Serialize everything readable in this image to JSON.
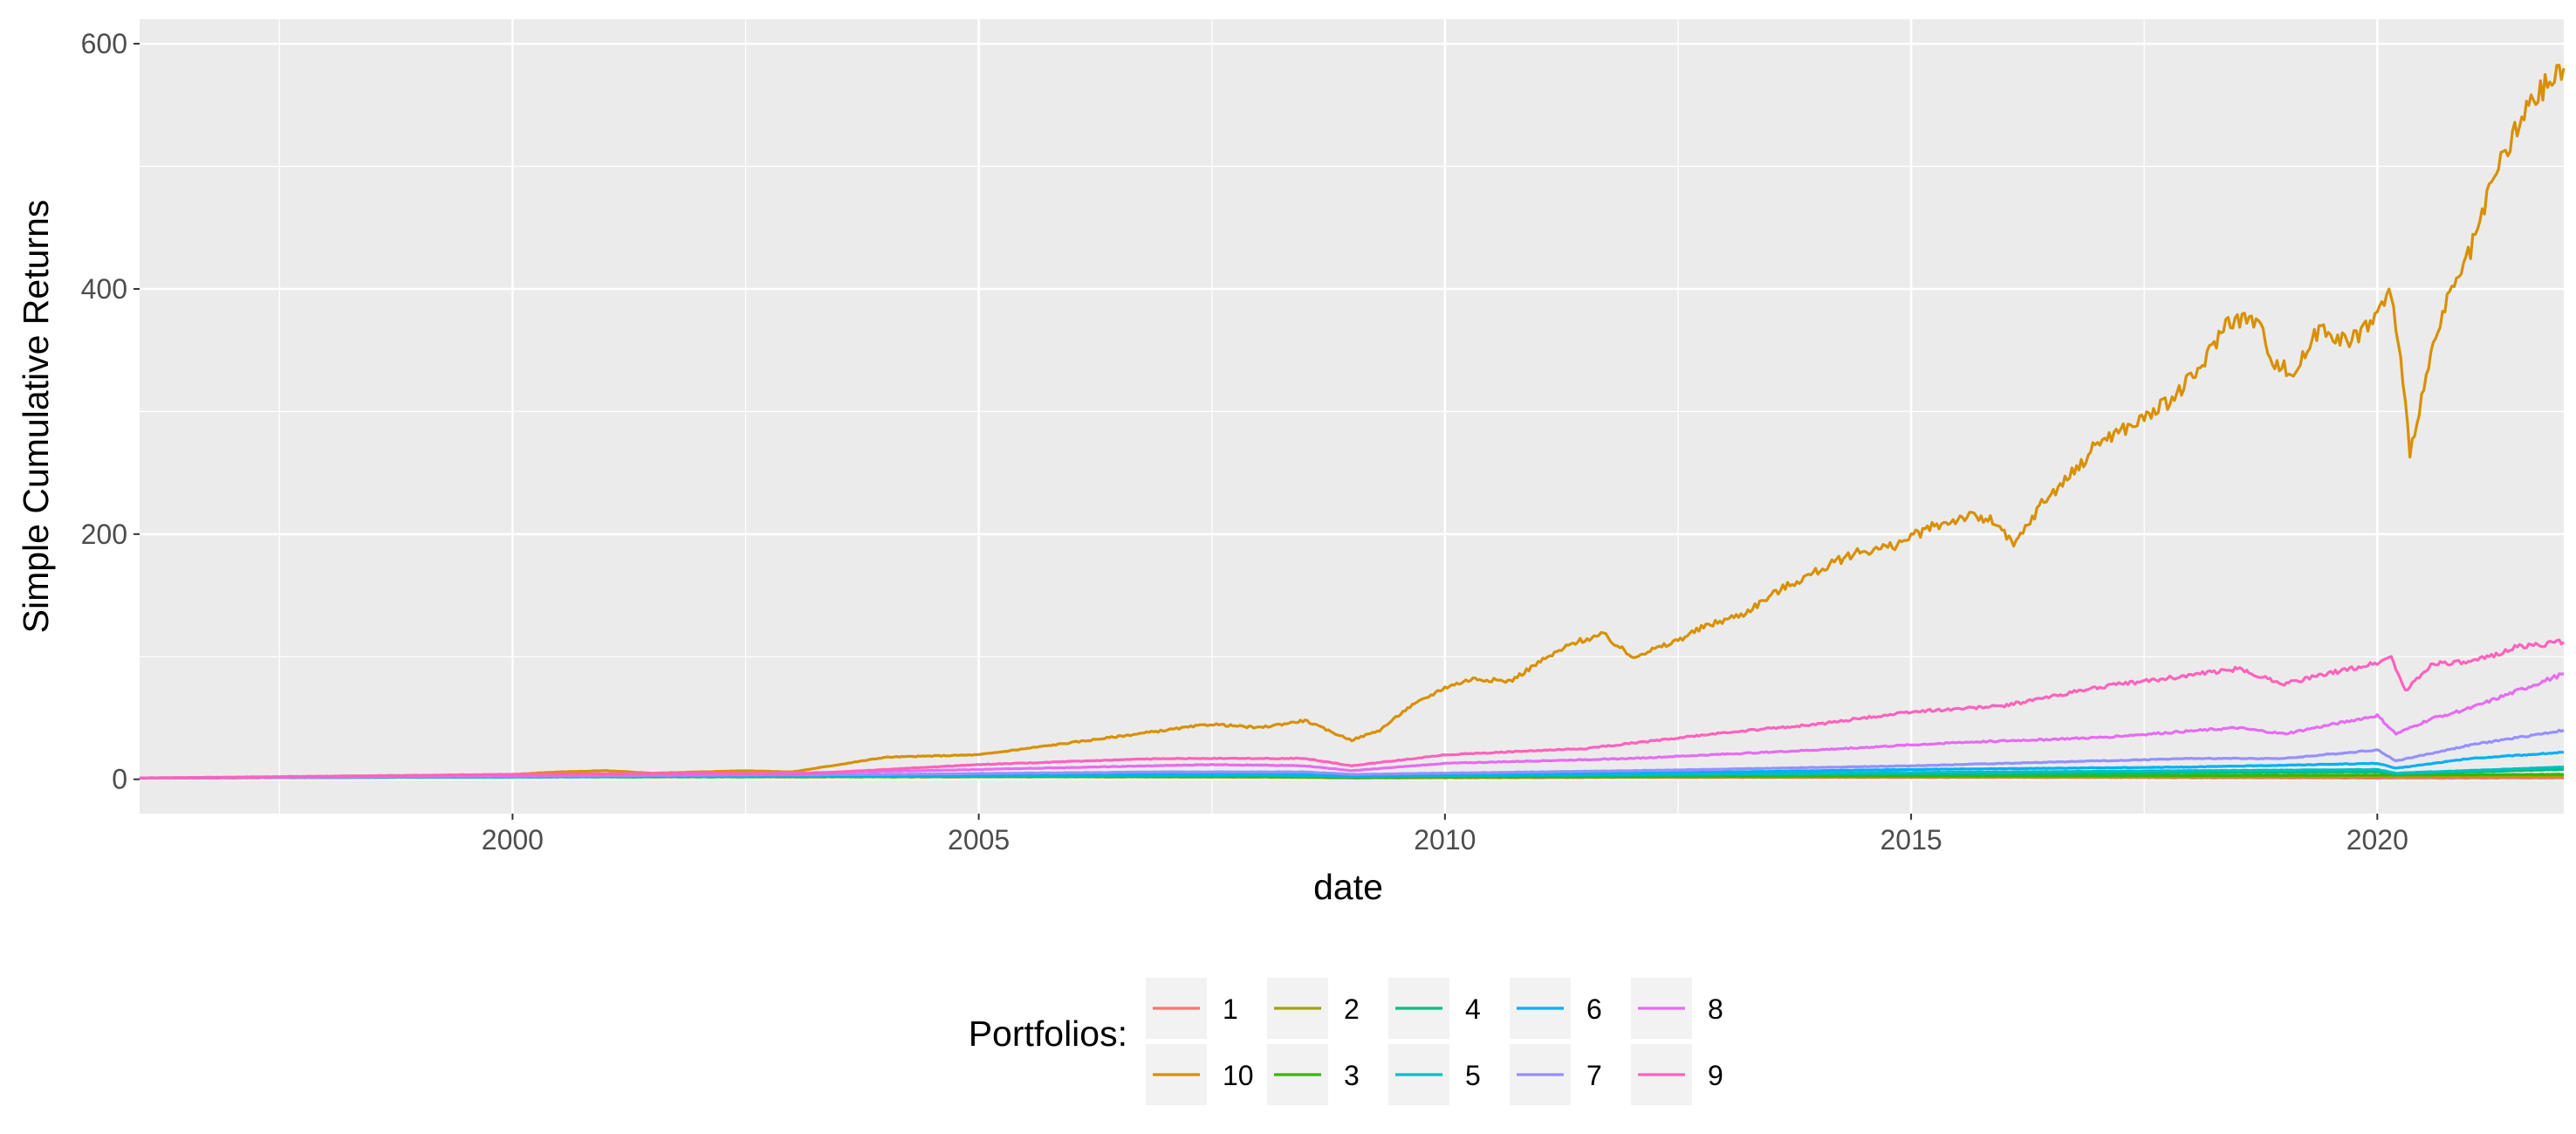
{
  "chart_data": {
    "type": "line",
    "title": "",
    "xlabel": "date",
    "ylabel": "Simple Cumulative Returns",
    "x_range": [
      1996.0,
      2022.0
    ],
    "y_range": [
      -28,
      620
    ],
    "x_ticks": [
      2000,
      2005,
      2010,
      2015,
      2020
    ],
    "x_tick_labels": [
      "2000",
      "2005",
      "2010",
      "2015",
      "2020"
    ],
    "y_ticks": [
      0,
      200,
      400,
      600
    ],
    "y_tick_labels": [
      "0",
      "200",
      "400",
      "600"
    ],
    "grid": true,
    "background": "#ebebeb",
    "legend": {
      "title": "Portfolios:",
      "position": "bottom",
      "entries": [
        {
          "label": "1",
          "color": "#F8766D"
        },
        {
          "label": "10",
          "color": "#D89000"
        },
        {
          "label": "2",
          "color": "#A3A500"
        },
        {
          "label": "3",
          "color": "#39B600"
        },
        {
          "label": "4",
          "color": "#00BF7D"
        },
        {
          "label": "5",
          "color": "#00BFC4"
        },
        {
          "label": "6",
          "color": "#00B0F6"
        },
        {
          "label": "7",
          "color": "#9590FF"
        },
        {
          "label": "8",
          "color": "#E76BF3"
        },
        {
          "label": "9",
          "color": "#FF62BC"
        }
      ]
    },
    "series": [
      {
        "name": "1",
        "color": "#F8766D",
        "points": [
          [
            1996.0,
            1
          ],
          [
            1998.0,
            1.5
          ],
          [
            2000.0,
            3
          ],
          [
            2001.0,
            3.5
          ],
          [
            2002.0,
            3
          ],
          [
            2003.0,
            2
          ],
          [
            2005.0,
            2
          ],
          [
            2008.0,
            2
          ],
          [
            2009.0,
            1
          ],
          [
            2012.0,
            1.5
          ],
          [
            2016.0,
            1.5
          ],
          [
            2020.0,
            1
          ],
          [
            2022.0,
            1
          ]
        ]
      },
      {
        "name": "10",
        "color": "#D89000",
        "points": [
          [
            1996.0,
            1
          ],
          [
            1997.0,
            1.5
          ],
          [
            1998.0,
            2
          ],
          [
            1999.0,
            3
          ],
          [
            2000.0,
            4
          ],
          [
            2000.5,
            6
          ],
          [
            2001.0,
            7
          ],
          [
            2001.5,
            5
          ],
          [
            2002.0,
            6
          ],
          [
            2002.5,
            7
          ],
          [
            2003.0,
            6
          ],
          [
            2003.5,
            12
          ],
          [
            2004.0,
            18
          ],
          [
            2005.0,
            20
          ],
          [
            2005.5,
            25
          ],
          [
            2006.0,
            30
          ],
          [
            2007.0,
            40
          ],
          [
            2007.5,
            45
          ],
          [
            2008.0,
            42
          ],
          [
            2008.5,
            48
          ],
          [
            2008.8,
            38
          ],
          [
            2009.0,
            32
          ],
          [
            2009.3,
            40
          ],
          [
            2009.6,
            58
          ],
          [
            2010.0,
            75
          ],
          [
            2010.3,
            82
          ],
          [
            2010.7,
            80
          ],
          [
            2011.0,
            95
          ],
          [
            2011.4,
            112
          ],
          [
            2011.7,
            118
          ],
          [
            2012.0,
            100
          ],
          [
            2012.4,
            110
          ],
          [
            2012.8,
            125
          ],
          [
            2013.2,
            135
          ],
          [
            2013.6,
            155
          ],
          [
            2014.0,
            170
          ],
          [
            2014.4,
            185
          ],
          [
            2014.8,
            190
          ],
          [
            2015.2,
            205
          ],
          [
            2015.6,
            215
          ],
          [
            2015.9,
            210
          ],
          [
            2016.1,
            190
          ],
          [
            2016.4,
            225
          ],
          [
            2016.8,
            255
          ],
          [
            2017.0,
            275
          ],
          [
            2017.4,
            290
          ],
          [
            2017.8,
            310
          ],
          [
            2018.1,
            335
          ],
          [
            2018.4,
            375
          ],
          [
            2018.7,
            375
          ],
          [
            2018.9,
            340
          ],
          [
            2019.1,
            330
          ],
          [
            2019.4,
            370
          ],
          [
            2019.7,
            355
          ],
          [
            2020.0,
            380
          ],
          [
            2020.15,
            398
          ],
          [
            2020.25,
            340
          ],
          [
            2020.35,
            268
          ],
          [
            2020.5,
            320
          ],
          [
            2020.7,
            380
          ],
          [
            2021.0,
            430
          ],
          [
            2021.3,
            500
          ],
          [
            2021.6,
            545
          ],
          [
            2021.8,
            565
          ],
          [
            2022.0,
            580
          ]
        ]
      },
      {
        "name": "2",
        "color": "#A3A500",
        "points": [
          [
            1996.0,
            1
          ],
          [
            1998.0,
            1.5
          ],
          [
            2000.0,
            2
          ],
          [
            2003.0,
            2
          ],
          [
            2006.0,
            2
          ],
          [
            2009.0,
            1.5
          ],
          [
            2014.0,
            2
          ],
          [
            2018.0,
            2
          ],
          [
            2022.0,
            2.5
          ]
        ]
      },
      {
        "name": "3",
        "color": "#39B600",
        "points": [
          [
            1996.0,
            1
          ],
          [
            2000.0,
            1.8
          ],
          [
            2004.0,
            2
          ],
          [
            2008.0,
            2.2
          ],
          [
            2009.0,
            1.6
          ],
          [
            2013.0,
            2.5
          ],
          [
            2018.0,
            3
          ],
          [
            2022.0,
            4
          ]
        ]
      },
      {
        "name": "4",
        "color": "#00BF7D",
        "points": [
          [
            1996.0,
            1
          ],
          [
            2000.0,
            2
          ],
          [
            2004.0,
            2.5
          ],
          [
            2008.0,
            3
          ],
          [
            2009.0,
            2
          ],
          [
            2013.0,
            3.5
          ],
          [
            2016.0,
            4.5
          ],
          [
            2020.0,
            6
          ],
          [
            2020.2,
            4.5
          ],
          [
            2022.0,
            8
          ]
        ]
      },
      {
        "name": "5",
        "color": "#00BFC4",
        "points": [
          [
            1996.0,
            1
          ],
          [
            2000.0,
            2
          ],
          [
            2004.0,
            2.5
          ],
          [
            2008.0,
            3.5
          ],
          [
            2009.0,
            2.5
          ],
          [
            2013.0,
            4.5
          ],
          [
            2016.0,
            6
          ],
          [
            2020.0,
            8
          ],
          [
            2020.2,
            5
          ],
          [
            2022.0,
            10
          ]
        ]
      },
      {
        "name": "6",
        "color": "#00B0F6",
        "points": [
          [
            1996.0,
            1
          ],
          [
            2000.0,
            2
          ],
          [
            2004.0,
            3
          ],
          [
            2008.0,
            5
          ],
          [
            2009.0,
            3
          ],
          [
            2012.0,
            5
          ],
          [
            2015.0,
            8
          ],
          [
            2018.0,
            10
          ],
          [
            2020.0,
            13
          ],
          [
            2020.2,
            9
          ],
          [
            2021.0,
            17
          ],
          [
            2022.0,
            22
          ]
        ]
      },
      {
        "name": "7",
        "color": "#9590FF",
        "points": [
          [
            1996.0,
            1
          ],
          [
            2000.0,
            2.5
          ],
          [
            2004.0,
            4
          ],
          [
            2007.0,
            6
          ],
          [
            2008.5,
            6
          ],
          [
            2009.0,
            4
          ],
          [
            2012.0,
            7
          ],
          [
            2015.0,
            11
          ],
          [
            2018.0,
            17
          ],
          [
            2019.0,
            17
          ],
          [
            2020.0,
            24
          ],
          [
            2020.2,
            15
          ],
          [
            2021.0,
            28
          ],
          [
            2022.0,
            40
          ]
        ]
      },
      {
        "name": "8",
        "color": "#E76BF3",
        "points": [
          [
            1996.0,
            1
          ],
          [
            2000.0,
            3
          ],
          [
            2003.0,
            5
          ],
          [
            2005.0,
            8
          ],
          [
            2007.5,
            12
          ],
          [
            2008.5,
            11
          ],
          [
            2009.0,
            7
          ],
          [
            2010.0,
            13
          ],
          [
            2012.0,
            17
          ],
          [
            2014.0,
            24
          ],
          [
            2015.5,
            30
          ],
          [
            2017.0,
            34
          ],
          [
            2018.5,
            42
          ],
          [
            2019.0,
            37
          ],
          [
            2020.0,
            52
          ],
          [
            2020.2,
            37
          ],
          [
            2020.6,
            50
          ],
          [
            2021.0,
            58
          ],
          [
            2021.5,
            72
          ],
          [
            2022.0,
            86
          ]
        ]
      },
      {
        "name": "9",
        "color": "#FF62BC",
        "points": [
          [
            1996.0,
            1
          ],
          [
            2000.0,
            4
          ],
          [
            2002.0,
            5
          ],
          [
            2003.0,
            4
          ],
          [
            2005.0,
            12
          ],
          [
            2007.0,
            17
          ],
          [
            2008.5,
            17
          ],
          [
            2009.0,
            11
          ],
          [
            2010.0,
            20
          ],
          [
            2011.5,
            25
          ],
          [
            2013.0,
            38
          ],
          [
            2014.0,
            45
          ],
          [
            2015.0,
            55
          ],
          [
            2016.0,
            60
          ],
          [
            2017.0,
            75
          ],
          [
            2018.0,
            85
          ],
          [
            2018.5,
            90
          ],
          [
            2019.0,
            78
          ],
          [
            2020.0,
            95
          ],
          [
            2020.15,
            100
          ],
          [
            2020.3,
            72
          ],
          [
            2020.6,
            95
          ],
          [
            2021.0,
            95
          ],
          [
            2021.5,
            108
          ],
          [
            2022.0,
            112
          ]
        ]
      }
    ]
  }
}
